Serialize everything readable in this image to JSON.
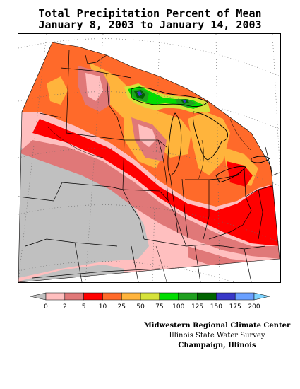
{
  "title_line1": "Total Precipitation Percent of Mean",
  "title_line2": "January 8, 2003 to January 14, 2003",
  "legend": {
    "labels": [
      "0",
      "2",
      "5",
      "10",
      "25",
      "50",
      "75",
      "100",
      "125",
      "150",
      "175",
      "200"
    ],
    "colors": [
      "#c0c0c0",
      "#ffbfbf",
      "#e07878",
      "#ff0000",
      "#ff6a2a",
      "#ffb43c",
      "#d6e23a",
      "#00dd00",
      "#1fa01f",
      "#006400",
      "#3838c8",
      "#6aa0ff",
      "#7fd4ff"
    ]
  },
  "credits": {
    "line1": "Midwestern Regional Climate Center",
    "line2": "Illinois State Water Survey",
    "line3": "Champaign, Illinois"
  }
}
